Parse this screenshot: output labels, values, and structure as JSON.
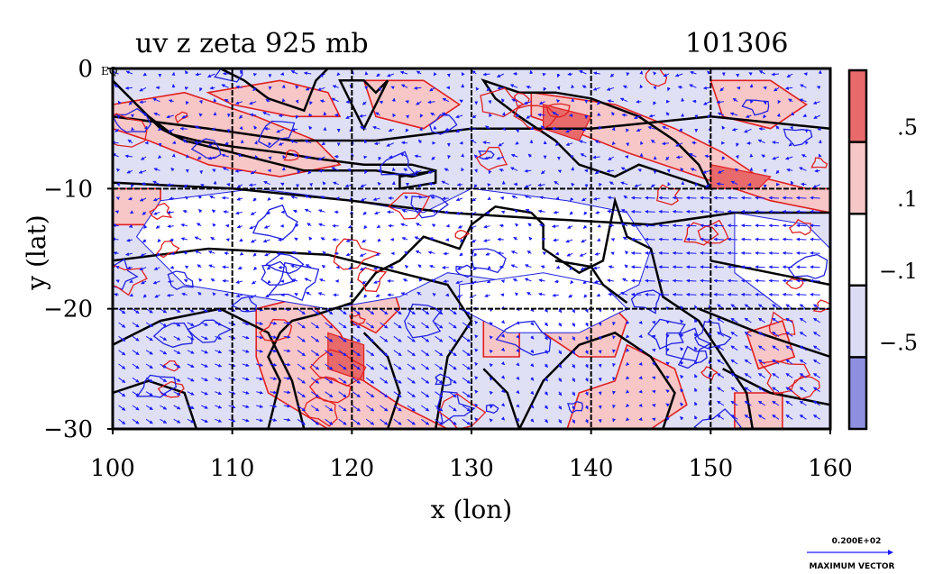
{
  "chart_data": {
    "type": "heatmap",
    "title": "uv z zeta 925 mb",
    "date_label": "101306",
    "xlabel": "x (lon)",
    "ylabel": "y (lat)",
    "xlim": [
      100,
      160
    ],
    "ylim": [
      -30,
      0
    ],
    "x_ticks": [
      100,
      110,
      120,
      130,
      140,
      150,
      160
    ],
    "y_ticks": [
      0,
      -10,
      -20,
      -30
    ],
    "y_tick_labels": [
      "0",
      "−10",
      "−20",
      "−30"
    ],
    "corner_label": "EQ",
    "grid": true,
    "colorbar": {
      "bounds": [
        1.0,
        0.5,
        0.1,
        -0.1,
        -0.5,
        -1.0
      ],
      "labels": [
        ".5",
        ".1",
        "−.1",
        "−.5"
      ],
      "colors": [
        "#e86a6a",
        "#f7c6c6",
        "#ffffff",
        "#dcdcf4",
        "#8f8fe0"
      ]
    },
    "layers": {
      "shaded": "zeta (relative vorticity)",
      "contours": "z (geopotential height)",
      "vectors": "uv (wind)"
    },
    "reference_vector": {
      "magnitude_label": "0.200E+02",
      "caption": "MAXIMUM VECTOR"
    },
    "colors": {
      "positive_contour": "#e02020",
      "negative_contour": "#2020e0",
      "height_contour": "#000000",
      "vector": "#1a1aff"
    }
  }
}
